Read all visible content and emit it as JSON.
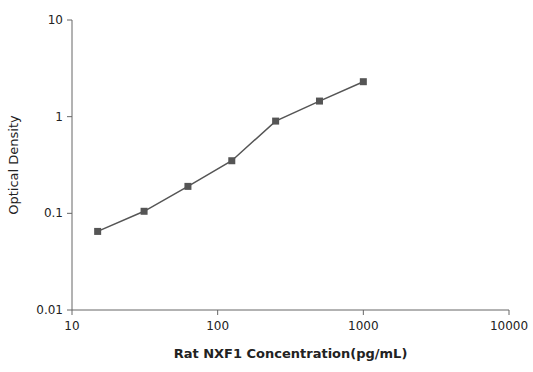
{
  "chart_data": {
    "type": "line",
    "xlabel": "Rat NXF1 Concentration(pg/mL)",
    "ylabel": "Optical Density",
    "x": [
      15,
      31.25,
      62.5,
      125,
      250,
      500,
      1000
    ],
    "values": [
      0.065,
      0.105,
      0.19,
      0.35,
      0.9,
      1.45,
      2.3
    ],
    "color": "#555555",
    "marker": "square",
    "log": true,
    "grid": false,
    "xlim": [
      10,
      10000
    ],
    "ylim": [
      0.01,
      10
    ],
    "xticks": [
      10,
      100,
      1000,
      10000
    ],
    "yticks": [
      0.01,
      0.1,
      1,
      10
    ]
  }
}
